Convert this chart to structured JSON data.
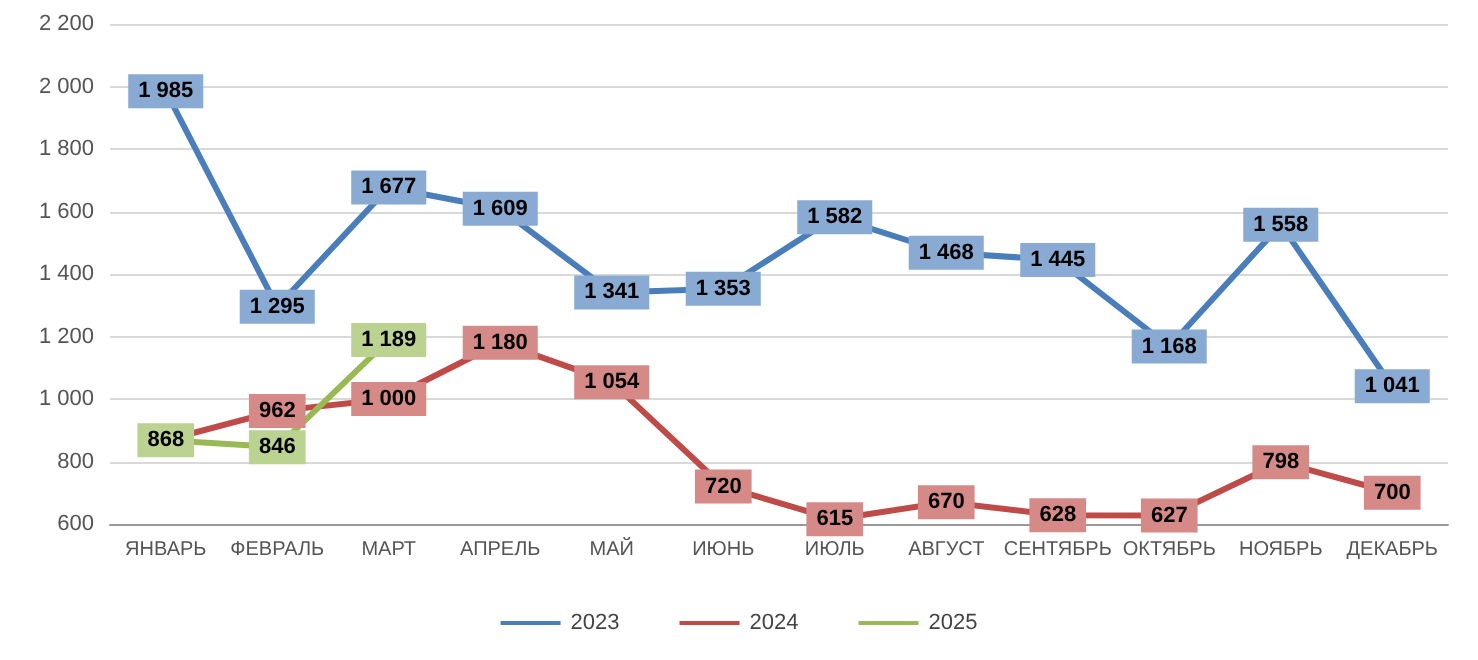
{
  "chart_data": {
    "type": "line",
    "categories": [
      "ЯНВАРЬ",
      "ФЕВРАЛЬ",
      "МАРТ",
      "АПРЕЛЬ",
      "МАЙ",
      "ИЮНЬ",
      "ИЮЛЬ",
      "АВГУСТ",
      "СЕНТЯБРЬ",
      "ОКТЯБРЬ",
      "НОЯБРЬ",
      "ДЕКАБРЬ"
    ],
    "series": [
      {
        "name": "2023",
        "color": "#4a7ebb",
        "values": [
          1985,
          1295,
          1677,
          1609,
          1341,
          1353,
          1582,
          1468,
          1445,
          1168,
          1558,
          1041
        ],
        "value_labels": [
          "1 985",
          "1 295",
          "1 677",
          "1 609",
          "1 341",
          "1 353",
          "1 582",
          "1 468",
          "1 445",
          "1 168",
          "1 558",
          "1 041"
        ]
      },
      {
        "name": "2024",
        "color": "#be4b48",
        "values": [
          868,
          962,
          1000,
          1180,
          1054,
          720,
          615,
          670,
          628,
          627,
          798,
          700
        ],
        "value_labels": [
          null,
          "962",
          "1 000",
          "1 180",
          "1 054",
          "720",
          "615",
          "670",
          "628",
          "627",
          "798",
          "700"
        ]
      },
      {
        "name": "2025",
        "color": "#98b954",
        "values": [
          868,
          846,
          1189,
          null,
          null,
          null,
          null,
          null,
          null,
          null,
          null,
          null
        ],
        "value_labels": [
          "868",
          "846",
          "1 189",
          null,
          null,
          null,
          null,
          null,
          null,
          null,
          null,
          null
        ]
      }
    ],
    "ylim": [
      600,
      2200
    ],
    "yticks": [
      600,
      800,
      {
        "value": 1000,
        "label": "1 000"
      },
      {
        "value": 1200,
        "label": "1 200"
      },
      {
        "value": 1400,
        "label": "1 400"
      },
      {
        "value": 1600,
        "label": "1 600"
      },
      {
        "value": 1800,
        "label": "1 800"
      },
      {
        "value": 2000,
        "label": "2 000"
      },
      {
        "value": 2200,
        "label": "2 200"
      }
    ],
    "grid": "y",
    "legend": "bottom",
    "marker": "circle",
    "line_style": "solid"
  }
}
